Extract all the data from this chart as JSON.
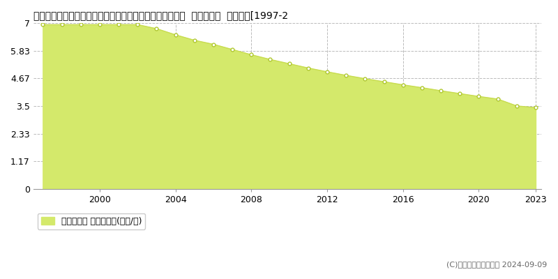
{
  "title": "鳥取県八頭郡若桜町大字若桜字古海橋ノ本１１１１番３２  基準地価格  地価推移[1997-2",
  "years": [
    1997,
    1998,
    1999,
    2000,
    2001,
    2002,
    2003,
    2004,
    2005,
    2006,
    2007,
    2008,
    2009,
    2010,
    2011,
    2012,
    2013,
    2014,
    2015,
    2016,
    2017,
    2018,
    2019,
    2020,
    2021,
    2022,
    2023
  ],
  "values": [
    6.93,
    6.93,
    6.93,
    6.93,
    6.93,
    6.93,
    6.76,
    6.5,
    6.27,
    6.1,
    5.88,
    5.66,
    5.46,
    5.28,
    5.1,
    4.94,
    4.79,
    4.65,
    4.52,
    4.39,
    4.27,
    4.14,
    4.02,
    3.9,
    3.79,
    3.5,
    3.43
  ],
  "ylim": [
    0,
    7
  ],
  "yticks": [
    0,
    1.17,
    2.33,
    3.5,
    4.67,
    5.83,
    7
  ],
  "ytick_labels": [
    "0",
    "1.17",
    "2.33",
    "3.5",
    "4.67",
    "5.83",
    "7"
  ],
  "xticks": [
    2000,
    2004,
    2008,
    2012,
    2016,
    2020,
    2023
  ],
  "fill_color": "#d4e96b",
  "line_color": "#c8dc50",
  "marker_face_color": "#ffffff",
  "marker_edge_color": "#b0c830",
  "legend_label": "基準地価格 平均坪単価(万円/坪)",
  "copyright_text": "(C)土地価格ドットコム 2024-09-09",
  "bg_color": "#ffffff",
  "plot_bg_color": "#ffffff",
  "grid_color": "#bbbbbb",
  "title_fontsize": 10,
  "axis_fontsize": 9,
  "legend_fontsize": 9,
  "copyright_fontsize": 8
}
